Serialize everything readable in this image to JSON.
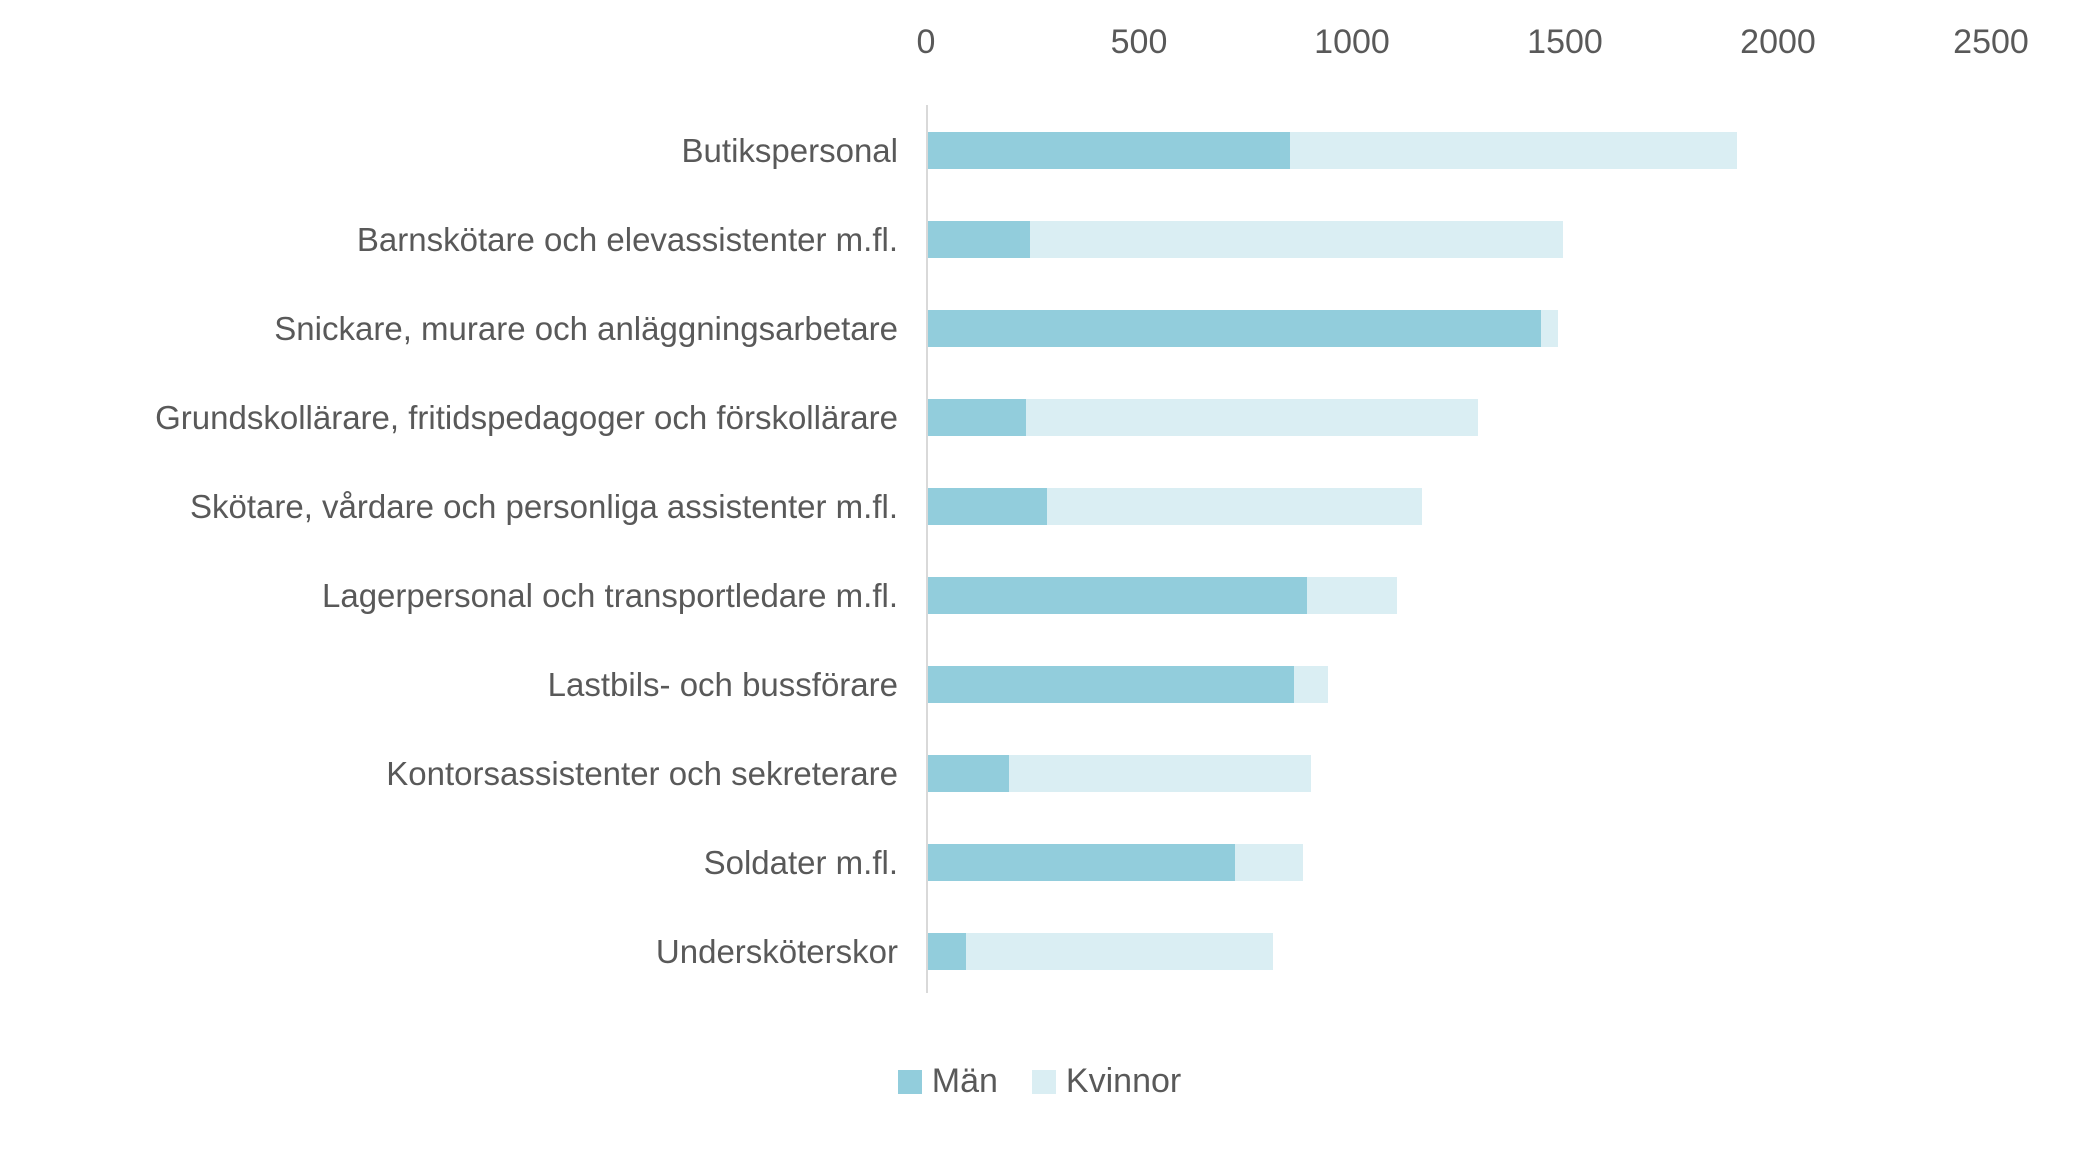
{
  "chart_data": {
    "type": "bar",
    "orientation": "horizontal",
    "stacked": true,
    "title": "",
    "categories": [
      "Butikspersonal",
      "Barnskötare och elevassistenter m.fl.",
      "Snickare, murare och anläggningsarbetare",
      "Grundskollärare, fritidspedagoger och förskollärare",
      "Skötare, vårdare och personliga assistenter m.fl.",
      "Lagerpersonal och transportledare m.fl.",
      "Lastbils- och bussförare",
      "Kontorsassistenter och sekreterare",
      "Soldater m.fl.",
      "Undersköterskor"
    ],
    "series": [
      {
        "name": "Män",
        "color": "#92CDDC",
        "values": [
          850,
          240,
          1440,
          230,
          280,
          890,
          860,
          190,
          720,
          90
        ]
      },
      {
        "name": "Kvinnor",
        "color": "#DAEEF3",
        "values": [
          1050,
          1250,
          40,
          1060,
          880,
          210,
          80,
          710,
          160,
          720
        ]
      }
    ],
    "x_axis": {
      "position": "top",
      "min": 0,
      "max": 2500,
      "ticks": [
        0,
        500,
        1000,
        1500,
        2000,
        2500
      ]
    },
    "grid": false,
    "legend": {
      "position": "bottom",
      "entries": [
        "Män",
        "Kvinnor"
      ]
    },
    "colors": {
      "axis_line": "#D9D9D9",
      "text": "#595959",
      "background": "#FFFFFF"
    }
  }
}
